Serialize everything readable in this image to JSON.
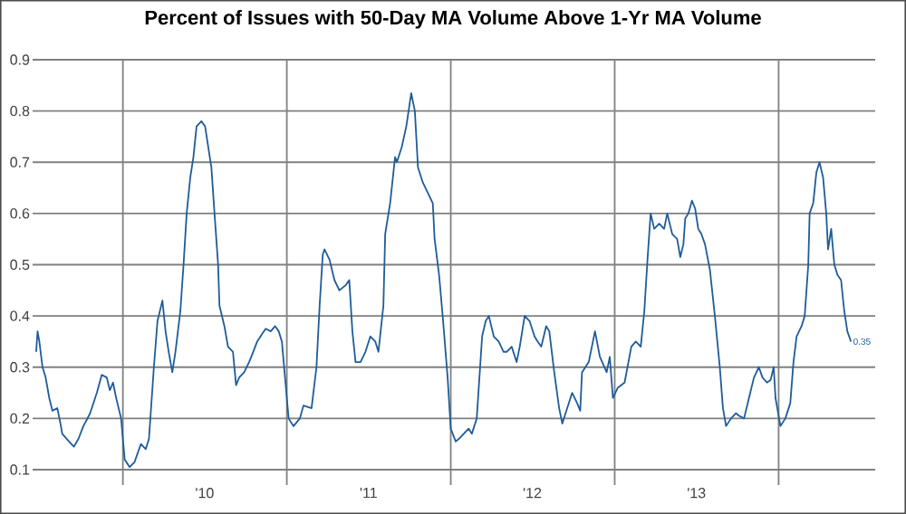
{
  "chart_data": {
    "type": "line",
    "title": "Percent of Issues with 50-Day MA Volume Above 1-Yr MA Volume",
    "x": [
      "2009-06-22",
      "2009-06-25",
      "2009-06-29",
      "2009-07-06",
      "2009-07-13",
      "2009-07-21",
      "2009-07-28",
      "2009-08-08",
      "2009-08-15",
      "2009-08-19",
      "2009-09-03",
      "2009-09-14",
      "2009-09-24",
      "2009-10-05",
      "2009-10-20",
      "2009-11-04",
      "2009-11-15",
      "2009-11-26",
      "2009-12-03",
      "2009-12-10",
      "2009-12-17",
      "2009-12-28",
      "2010-01-05",
      "2010-01-16",
      "2010-01-27",
      "2010-02-10",
      "2010-02-21",
      "2010-02-28",
      "2010-03-11",
      "2010-03-19",
      "2010-03-30",
      "2010-04-06",
      "2010-04-13",
      "2010-04-21",
      "2010-04-28",
      "2010-05-09",
      "2010-05-16",
      "2010-05-23",
      "2010-05-31",
      "2010-06-07",
      "2010-06-14",
      "2010-06-25",
      "2010-07-03",
      "2010-07-10",
      "2010-07-17",
      "2010-07-24",
      "2010-08-01",
      "2010-08-04",
      "2010-08-15",
      "2010-08-23",
      "2010-09-03",
      "2010-09-10",
      "2010-09-17",
      "2010-09-28",
      "2010-10-09",
      "2010-10-16",
      "2010-10-27",
      "2010-11-07",
      "2010-11-15",
      "2010-11-26",
      "2010-12-06",
      "2010-12-14",
      "2010-12-21",
      "2010-12-28",
      "2011-01-05",
      "2011-01-12",
      "2011-01-16",
      "2011-01-30",
      "2011-02-07",
      "2011-02-25",
      "2011-03-08",
      "2011-03-15",
      "2011-03-22",
      "2011-03-26",
      "2011-04-06",
      "2011-04-17",
      "2011-04-28",
      "2011-05-12",
      "2011-05-20",
      "2011-05-27",
      "2011-06-03",
      "2011-06-14",
      "2011-06-25",
      "2011-07-06",
      "2011-07-17",
      "2011-07-24",
      "2011-08-04",
      "2011-08-08",
      "2011-08-19",
      "2011-08-30",
      "2011-09-03",
      "2011-09-14",
      "2011-09-24",
      "2011-10-05",
      "2011-10-13",
      "2011-10-20",
      "2011-10-31",
      "2011-11-11",
      "2011-11-22",
      "2011-11-26",
      "2011-12-06",
      "2011-12-14",
      "2011-12-25",
      "2012-01-01",
      "2012-01-12",
      "2012-01-19",
      "2012-01-30",
      "2012-02-10",
      "2012-02-17",
      "2012-02-28",
      "2012-03-11",
      "2012-03-19",
      "2012-03-26",
      "2012-04-06",
      "2012-04-17",
      "2012-04-28",
      "2012-05-05",
      "2012-05-16",
      "2012-05-27",
      "2012-06-03",
      "2012-06-14",
      "2012-06-25",
      "2012-07-06",
      "2012-07-13",
      "2012-07-21",
      "2012-08-01",
      "2012-08-08",
      "2012-08-19",
      "2012-08-30",
      "2012-09-06",
      "2012-09-17",
      "2012-09-28",
      "2012-10-09",
      "2012-10-16",
      "2012-10-20",
      "2012-11-04",
      "2012-11-18",
      "2012-11-29",
      "2012-12-14",
      "2012-12-21",
      "2012-12-28",
      "2013-01-08",
      "2013-01-23",
      "2013-02-07",
      "2013-02-17",
      "2013-02-28",
      "2013-03-08",
      "2013-03-15",
      "2013-03-22",
      "2013-03-30",
      "2013-04-10",
      "2013-04-21",
      "2013-04-28",
      "2013-05-09",
      "2013-05-20",
      "2013-05-27",
      "2013-06-03",
      "2013-06-07",
      "2013-06-14",
      "2013-06-22",
      "2013-06-29",
      "2013-07-06",
      "2013-07-13",
      "2013-07-21",
      "2013-08-01",
      "2013-08-12",
      "2013-08-23",
      "2013-08-30",
      "2013-09-06",
      "2013-09-17",
      "2013-09-28",
      "2013-10-05",
      "2013-10-16",
      "2013-10-27",
      "2013-11-07",
      "2013-11-18",
      "2013-11-26",
      "2013-12-06",
      "2013-12-14",
      "2013-12-21",
      "2013-12-25",
      "2014-01-05",
      "2014-01-16",
      "2014-01-27",
      "2014-02-03",
      "2014-02-10",
      "2014-02-21",
      "2014-02-28",
      "2014-03-08",
      "2014-03-11",
      "2014-03-19",
      "2014-03-26",
      "2014-04-02",
      "2014-04-10",
      "2014-04-17",
      "2014-04-21",
      "2014-04-28",
      "2014-05-05",
      "2014-05-12",
      "2014-05-20",
      "2014-05-27",
      "2014-06-03",
      "2014-06-11"
    ],
    "series": [
      {
        "color": "#1f5c99",
        "values": [
          0.33,
          0.37,
          0.35,
          0.3,
          0.28,
          0.24,
          0.215,
          0.22,
          0.19,
          0.17,
          0.155,
          0.145,
          0.16,
          0.185,
          0.21,
          0.25,
          0.285,
          0.28,
          0.255,
          0.27,
          0.24,
          0.2,
          0.12,
          0.105,
          0.115,
          0.15,
          0.14,
          0.16,
          0.3,
          0.39,
          0.43,
          0.37,
          0.33,
          0.29,
          0.33,
          0.41,
          0.5,
          0.6,
          0.67,
          0.71,
          0.77,
          0.78,
          0.77,
          0.73,
          0.69,
          0.6,
          0.5,
          0.42,
          0.38,
          0.34,
          0.33,
          0.265,
          0.28,
          0.29,
          0.31,
          0.325,
          0.35,
          0.365,
          0.375,
          0.37,
          0.38,
          0.37,
          0.35,
          0.28,
          0.2,
          0.19,
          0.185,
          0.2,
          0.225,
          0.22,
          0.3,
          0.42,
          0.52,
          0.53,
          0.51,
          0.47,
          0.45,
          0.46,
          0.47,
          0.37,
          0.31,
          0.31,
          0.33,
          0.36,
          0.35,
          0.33,
          0.42,
          0.56,
          0.62,
          0.71,
          0.7,
          0.73,
          0.77,
          0.835,
          0.8,
          0.69,
          0.66,
          0.64,
          0.62,
          0.55,
          0.48,
          0.4,
          0.28,
          0.18,
          0.155,
          0.16,
          0.17,
          0.18,
          0.17,
          0.2,
          0.36,
          0.39,
          0.4,
          0.36,
          0.35,
          0.33,
          0.33,
          0.34,
          0.31,
          0.34,
          0.4,
          0.39,
          0.36,
          0.35,
          0.34,
          0.38,
          0.37,
          0.29,
          0.22,
          0.19,
          0.22,
          0.25,
          0.23,
          0.215,
          0.29,
          0.31,
          0.37,
          0.32,
          0.29,
          0.32,
          0.24,
          0.26,
          0.27,
          0.34,
          0.35,
          0.34,
          0.41,
          0.51,
          0.6,
          0.57,
          0.58,
          0.57,
          0.6,
          0.56,
          0.55,
          0.515,
          0.54,
          0.59,
          0.6,
          0.625,
          0.61,
          0.57,
          0.56,
          0.54,
          0.49,
          0.4,
          0.3,
          0.22,
          0.185,
          0.2,
          0.21,
          0.205,
          0.2,
          0.24,
          0.28,
          0.3,
          0.28,
          0.27,
          0.275,
          0.3,
          0.24,
          0.185,
          0.2,
          0.23,
          0.31,
          0.36,
          0.38,
          0.4,
          0.5,
          0.6,
          0.62,
          0.68,
          0.7,
          0.67,
          0.6,
          0.53,
          0.57,
          0.5,
          0.48,
          0.47,
          0.41,
          0.37,
          0.35
        ]
      }
    ],
    "xlim": [
      "2009-06-14",
      "2014-08-04"
    ],
    "ylim": [
      0.07,
      0.9
    ],
    "xticks": [
      {
        "value": "2010-01-01",
        "label": null
      },
      {
        "value": "2011-01-01",
        "label": null
      },
      {
        "value": "2012-01-01",
        "label": null
      },
      {
        "value": "2013-01-01",
        "label": null
      },
      {
        "value": "2014-01-01",
        "label": null
      },
      {
        "value": "2010-07-02",
        "label": "'10"
      },
      {
        "value": "2011-07-02",
        "label": "'11"
      },
      {
        "value": "2012-07-01",
        "label": "'12"
      },
      {
        "value": "2013-07-02",
        "label": "'13"
      }
    ],
    "yticks": [
      0.1,
      0.2,
      0.3,
      0.4,
      0.5,
      0.6,
      0.7,
      0.8,
      0.9
    ],
    "grid": true,
    "marker": "none",
    "line_style": "solid",
    "annotations": [
      {
        "text": "0.35",
        "x": "2014-06-11",
        "y": 0.35
      }
    ]
  }
}
